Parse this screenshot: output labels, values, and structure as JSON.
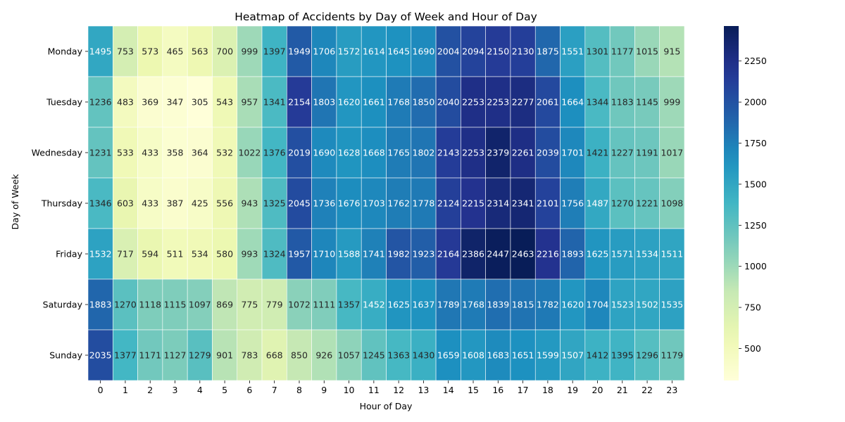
{
  "chart_data": {
    "type": "heatmap",
    "title": "Heatmap of Accidents by Day of Week and Hour of Day",
    "xlabel": "Hour of Day",
    "ylabel": "Day of Week",
    "x": [
      "0",
      "1",
      "2",
      "3",
      "4",
      "5",
      "6",
      "7",
      "8",
      "9",
      "10",
      "11",
      "12",
      "13",
      "14",
      "15",
      "16",
      "17",
      "18",
      "19",
      "20",
      "21",
      "22",
      "23"
    ],
    "y": [
      "Monday",
      "Tuesday",
      "Wednesday",
      "Thursday",
      "Friday",
      "Saturday",
      "Sunday"
    ],
    "values": [
      [
        1495,
        753,
        573,
        465,
        563,
        700,
        999,
        1397,
        1949,
        1706,
        1572,
        1614,
        1645,
        1690,
        2004,
        2094,
        2150,
        2130,
        1875,
        1551,
        1301,
        1177,
        1015,
        915
      ],
      [
        1236,
        483,
        369,
        347,
        305,
        543,
        957,
        1341,
        2154,
        1803,
        1620,
        1661,
        1768,
        1850,
        2040,
        2253,
        2253,
        2277,
        2061,
        1664,
        1344,
        1183,
        1145,
        999
      ],
      [
        1231,
        533,
        433,
        358,
        364,
        532,
        1022,
        1376,
        2019,
        1690,
        1628,
        1668,
        1765,
        1802,
        2143,
        2253,
        2379,
        2261,
        2039,
        1701,
        1421,
        1227,
        1191,
        1017
      ],
      [
        1346,
        603,
        433,
        387,
        425,
        556,
        943,
        1325,
        2045,
        1736,
        1676,
        1703,
        1762,
        1778,
        2124,
        2215,
        2314,
        2341,
        2101,
        1756,
        1487,
        1270,
        1221,
        1098
      ],
      [
        1532,
        717,
        594,
        511,
        534,
        580,
        993,
        1324,
        1957,
        1710,
        1588,
        1741,
        1982,
        1923,
        2164,
        2386,
        2447,
        2463,
        2216,
        1893,
        1625,
        1571,
        1534,
        1511
      ],
      [
        1883,
        1270,
        1118,
        1115,
        1097,
        869,
        775,
        779,
        1072,
        1111,
        1357,
        1452,
        1625,
        1637,
        1789,
        1768,
        1839,
        1815,
        1782,
        1620,
        1704,
        1523,
        1502,
        1535
      ],
      [
        2035,
        1377,
        1171,
        1127,
        1279,
        901,
        783,
        668,
        850,
        926,
        1057,
        1245,
        1363,
        1430,
        1659,
        1608,
        1683,
        1651,
        1599,
        1507,
        1412,
        1395,
        1296,
        1179
      ]
    ],
    "colorbar": {
      "min": 305,
      "max": 2463,
      "ticks": [
        500,
        750,
        1000,
        1250,
        1500,
        1750,
        2000,
        2250
      ],
      "colormap": "YlGnBu"
    },
    "grid": false,
    "cell_borders": "white"
  }
}
